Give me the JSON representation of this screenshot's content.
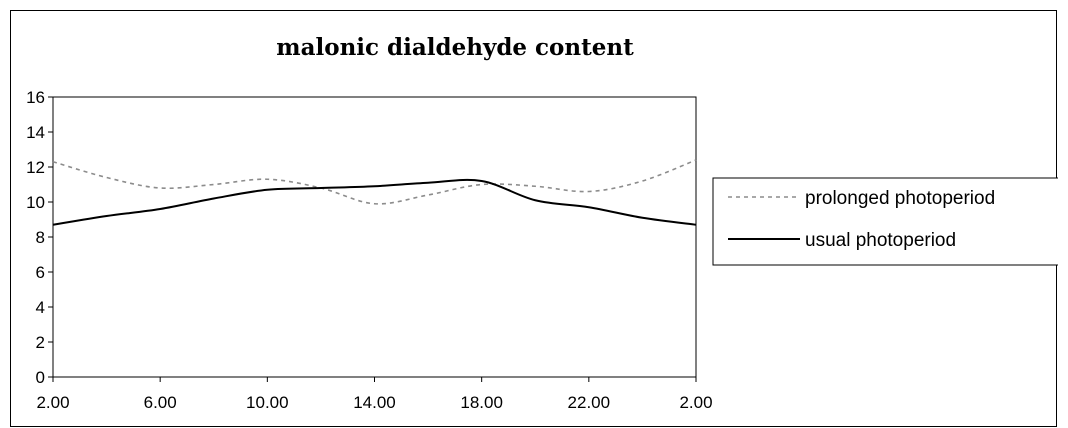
{
  "chart_data": {
    "type": "line",
    "title": "malonic dialdehyde content",
    "xlabel": "",
    "ylabel": "",
    "x_tick_labels": [
      "2.00",
      "6.00",
      "10.00",
      "14.00",
      "18.00",
      "22.00",
      "2.00"
    ],
    "x_hours": [
      2,
      4,
      6,
      8,
      10,
      12,
      14,
      16,
      18,
      20,
      22,
      24,
      26
    ],
    "ylim": [
      0,
      16
    ],
    "y_ticks": [
      0,
      2,
      4,
      6,
      8,
      10,
      12,
      14,
      16
    ],
    "grid": false,
    "legend_position": "right",
    "series": [
      {
        "name": "prolonged photoperiod",
        "color": "#8c8c8c",
        "style": "dotted",
        "values": [
          12.3,
          11.4,
          10.8,
          11.0,
          11.3,
          10.8,
          9.9,
          10.4,
          11.0,
          10.9,
          10.6,
          11.2,
          12.4
        ]
      },
      {
        "name": "usual photoperiod",
        "color": "#000000",
        "style": "solid",
        "values": [
          8.7,
          9.2,
          9.6,
          10.2,
          10.7,
          10.8,
          10.9,
          11.1,
          11.2,
          10.1,
          9.7,
          9.1,
          8.7
        ]
      }
    ]
  }
}
